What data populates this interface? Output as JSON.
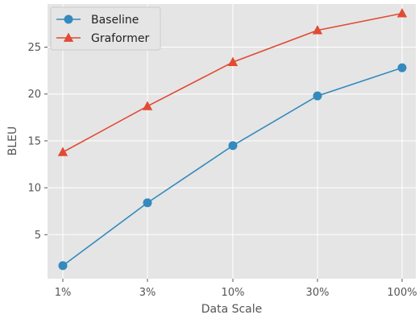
{
  "chart_data": {
    "type": "line",
    "categories": [
      "1%",
      "3%",
      "10%",
      "30%",
      "100%"
    ],
    "xlabel": "Data Scale",
    "ylabel": "BLEU",
    "yticks": [
      5,
      10,
      15,
      20,
      25
    ],
    "ylim": [
      0.3,
      29.6
    ],
    "grid": true,
    "legend_position": "top-left",
    "background": "#E5E5E5",
    "series": [
      {
        "name": "Baseline",
        "color": "#348ABD",
        "marker": "circle",
        "values": [
          1.7,
          8.4,
          14.5,
          19.8,
          22.8
        ]
      },
      {
        "name": "Graformer",
        "color": "#E24A33",
        "marker": "triangle",
        "values": [
          13.8,
          18.7,
          23.4,
          26.8,
          28.6
        ]
      }
    ]
  }
}
